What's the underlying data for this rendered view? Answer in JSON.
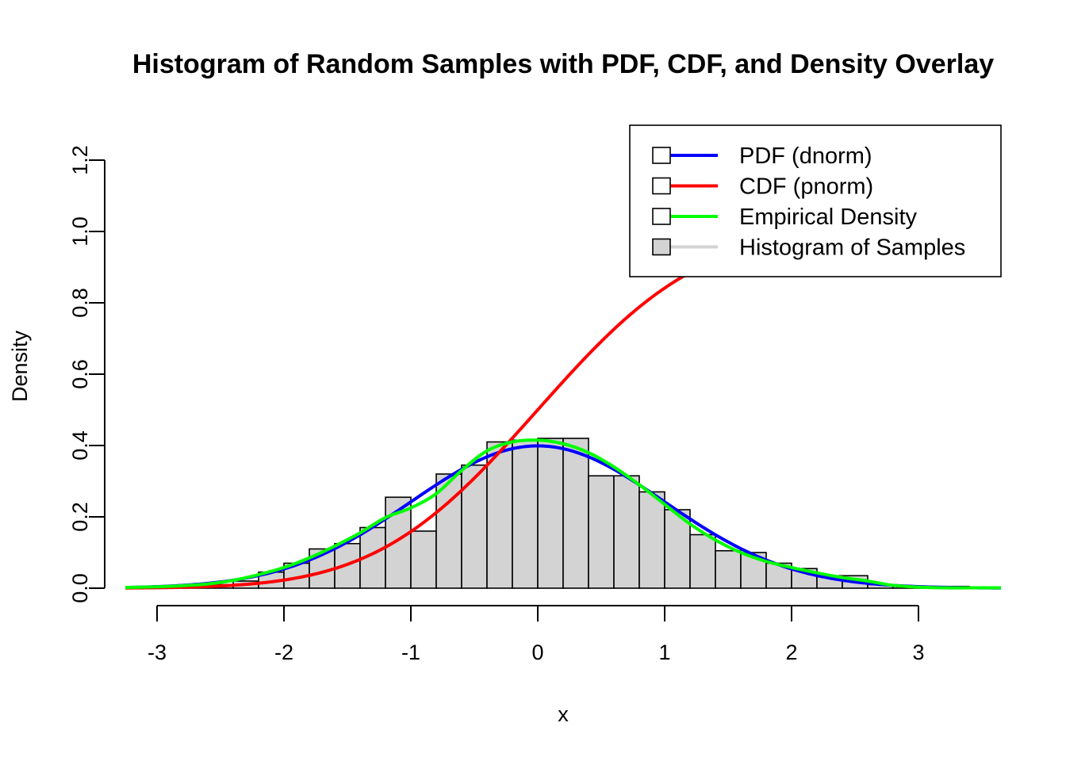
{
  "chart_data": {
    "type": "bar",
    "title": "Histogram of Random Samples with PDF, CDF, and Density Overlay",
    "xlabel": "x",
    "ylabel": "Density",
    "xlim": [
      -3.25,
      3.65
    ],
    "ylim": [
      0,
      1.2
    ],
    "x_ticks": [
      -3,
      -2,
      -1,
      0,
      1,
      2,
      3
    ],
    "x_tick_labels": [
      "-3",
      "-2",
      "-1",
      "0",
      "1",
      "2",
      "3"
    ],
    "y_ticks": [
      0,
      0.2,
      0.4,
      0.6,
      0.8,
      1.0,
      1.2
    ],
    "y_tick_labels": [
      "0.0",
      "0.2",
      "0.4",
      "0.6",
      "0.8",
      "1.0",
      "1.2"
    ],
    "histogram": {
      "name": "Histogram of Samples",
      "bin_width": 0.2,
      "fill": "#d3d3d3",
      "bins": [
        {
          "x0": -2.8,
          "x1": -2.6,
          "density": 0.01
        },
        {
          "x0": -2.6,
          "x1": -2.4,
          "density": 0.01
        },
        {
          "x0": -2.4,
          "x1": -2.2,
          "density": 0.02
        },
        {
          "x0": -2.2,
          "x1": -2.0,
          "density": 0.045
        },
        {
          "x0": -2.0,
          "x1": -1.8,
          "density": 0.07
        },
        {
          "x0": -1.8,
          "x1": -1.6,
          "density": 0.11
        },
        {
          "x0": -1.6,
          "x1": -1.4,
          "density": 0.125
        },
        {
          "x0": -1.4,
          "x1": -1.2,
          "density": 0.17
        },
        {
          "x0": -1.2,
          "x1": -1.0,
          "density": 0.255
        },
        {
          "x0": -1.0,
          "x1": -0.8,
          "density": 0.16
        },
        {
          "x0": -0.8,
          "x1": -0.6,
          "density": 0.32
        },
        {
          "x0": -0.6,
          "x1": -0.4,
          "density": 0.345
        },
        {
          "x0": -0.4,
          "x1": -0.2,
          "density": 0.41
        },
        {
          "x0": -0.2,
          "x1": 0.0,
          "density": 0.415
        },
        {
          "x0": 0.0,
          "x1": 0.2,
          "density": 0.42
        },
        {
          "x0": 0.2,
          "x1": 0.4,
          "density": 0.42
        },
        {
          "x0": 0.4,
          "x1": 0.6,
          "density": 0.315
        },
        {
          "x0": 0.6,
          "x1": 0.8,
          "density": 0.315
        },
        {
          "x0": 0.8,
          "x1": 1.0,
          "density": 0.27
        },
        {
          "x0": 1.0,
          "x1": 1.2,
          "density": 0.22
        },
        {
          "x0": 1.2,
          "x1": 1.4,
          "density": 0.15
        },
        {
          "x0": 1.4,
          "x1": 1.6,
          "density": 0.105
        },
        {
          "x0": 1.6,
          "x1": 1.8,
          "density": 0.1
        },
        {
          "x0": 1.8,
          "x1": 2.0,
          "density": 0.07
        },
        {
          "x0": 2.0,
          "x1": 2.2,
          "density": 0.055
        },
        {
          "x0": 2.2,
          "x1": 2.4,
          "density": 0.035
        },
        {
          "x0": 2.4,
          "x1": 2.6,
          "density": 0.035
        },
        {
          "x0": 2.6,
          "x1": 2.8,
          "density": 0.01
        },
        {
          "x0": 2.8,
          "x1": 3.0,
          "density": 0.005
        },
        {
          "x0": 3.0,
          "x1": 3.2,
          "density": 0.005
        },
        {
          "x0": 3.2,
          "x1": 3.4,
          "density": 0.005
        }
      ]
    },
    "series": [
      {
        "name": "PDF (dnorm)",
        "color": "#0000ff",
        "function": "dnorm",
        "mean": 0,
        "sd": 1
      },
      {
        "name": "CDF (pnorm)",
        "color": "#ff0000",
        "function": "pnorm",
        "mean": 0,
        "sd": 1
      },
      {
        "name": "Empirical Density",
        "color": "#00ff00",
        "x": [
          -3.25,
          -3.0,
          -2.8,
          -2.6,
          -2.4,
          -2.2,
          -2.0,
          -1.8,
          -1.6,
          -1.4,
          -1.2,
          -1.0,
          -0.8,
          -0.6,
          -0.4,
          -0.2,
          0.0,
          0.2,
          0.4,
          0.6,
          0.8,
          1.0,
          1.2,
          1.4,
          1.6,
          1.8,
          2.0,
          2.2,
          2.4,
          2.6,
          2.8,
          3.0,
          3.2,
          3.4,
          3.65
        ],
        "y": [
          0.002,
          0.004,
          0.007,
          0.012,
          0.022,
          0.038,
          0.058,
          0.085,
          0.118,
          0.155,
          0.198,
          0.225,
          0.265,
          0.33,
          0.385,
          0.41,
          0.415,
          0.405,
          0.38,
          0.34,
          0.29,
          0.235,
          0.18,
          0.135,
          0.1,
          0.075,
          0.058,
          0.043,
          0.03,
          0.02,
          0.008,
          0.003,
          0.001,
          0.001,
          0.001
        ]
      }
    ],
    "legend": {
      "position": "top-right",
      "entries": [
        {
          "label": "PDF (dnorm)",
          "line_color": "#0000ff",
          "box_fill": "#ffffff"
        },
        {
          "label": "CDF (pnorm)",
          "line_color": "#ff0000",
          "box_fill": "#ffffff"
        },
        {
          "label": "Empirical Density",
          "line_color": "#00ff00",
          "box_fill": "#ffffff"
        },
        {
          "label": "Histogram of Samples",
          "line_color": "#d3d3d3",
          "box_fill": "#d3d3d3"
        }
      ]
    },
    "grid": false
  }
}
